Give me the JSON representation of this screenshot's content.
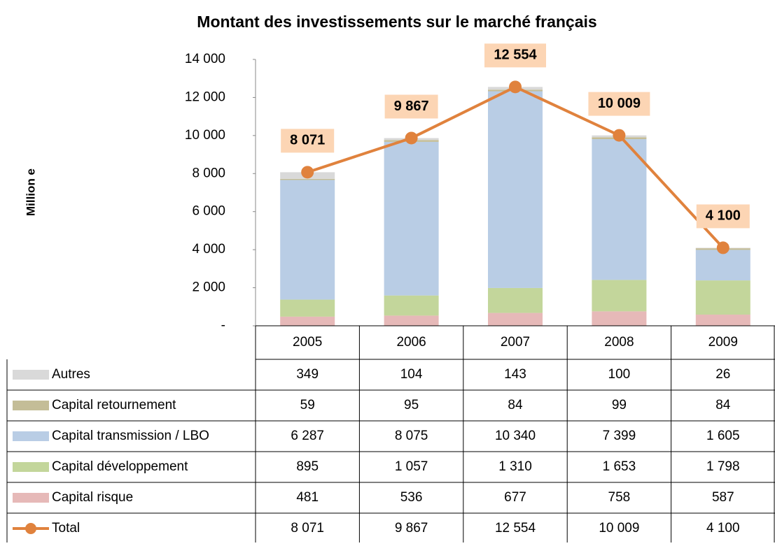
{
  "chart_data": {
    "type": "bar",
    "title": "Montant des investissements sur le marché français",
    "y_label": "Million e",
    "categories": [
      "2005",
      "2006",
      "2007",
      "2008",
      "2009"
    ],
    "stacked": true,
    "series": [
      {
        "name": "Autres",
        "color": "#d9d9d9",
        "values": [
          349,
          104,
          143,
          100,
          26
        ],
        "value_labels": [
          "349",
          "104",
          "143",
          "100",
          "26"
        ]
      },
      {
        "name": "Capital retournement",
        "color": "#c4bd97",
        "values": [
          59,
          95,
          84,
          99,
          84
        ],
        "value_labels": [
          "59",
          "95",
          "84",
          "99",
          "84"
        ]
      },
      {
        "name": "Capital transmission / LBO",
        "color": "#b9cde5",
        "values": [
          6287,
          8075,
          10340,
          7399,
          1605
        ],
        "value_labels": [
          "6 287",
          "8 075",
          "10 340",
          "7 399",
          "1 605"
        ]
      },
      {
        "name": "Capital développement",
        "color": "#c3d69b",
        "values": [
          895,
          1057,
          1310,
          1653,
          1798
        ],
        "value_labels": [
          "895",
          "1 057",
          "1 310",
          "1 653",
          "1 798"
        ]
      },
      {
        "name": "Capital risque",
        "color": "#e6b9b8",
        "values": [
          481,
          536,
          677,
          758,
          587
        ],
        "value_labels": [
          "481",
          "536",
          "677",
          "758",
          "587"
        ]
      }
    ],
    "total": {
      "name": "Total",
      "color": "#e0823d",
      "values": [
        8071,
        9867,
        12554,
        10009,
        4100
      ],
      "value_labels": [
        "8 071",
        "9 867",
        "12 554",
        "10 009",
        "4 100"
      ],
      "label_color": "#fcd5b4"
    },
    "ylim": [
      0,
      14000
    ],
    "yticks": [
      {
        "value": 0,
        "label": "-"
      },
      {
        "value": 2000,
        "label": "2 000"
      },
      {
        "value": 4000,
        "label": "4 000"
      },
      {
        "value": 6000,
        "label": "6 000"
      },
      {
        "value": 8000,
        "label": "8 000"
      },
      {
        "value": 10000,
        "label": "10 000"
      },
      {
        "value": 12000,
        "label": "12 000"
      },
      {
        "value": 14000,
        "label": "14 000"
      }
    ]
  }
}
